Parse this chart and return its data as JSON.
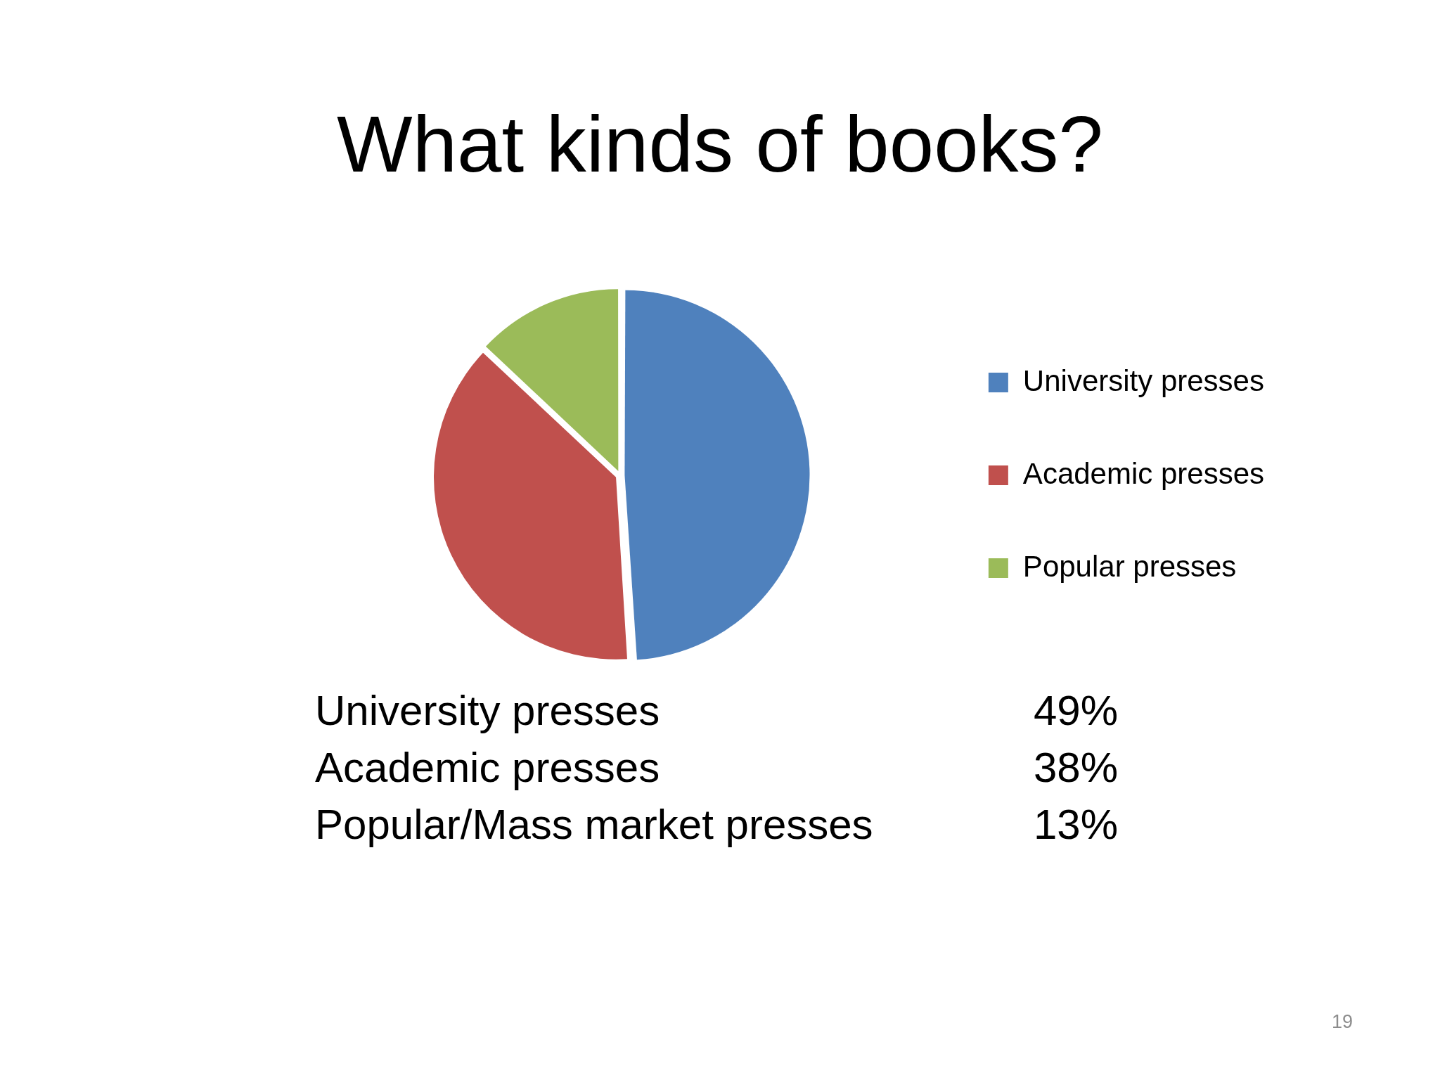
{
  "chart_data": {
    "type": "pie",
    "title": "What kinds of books?",
    "categories": [
      "University presses",
      "Academic presses",
      "Popular presses"
    ],
    "values": [
      49,
      38,
      13
    ],
    "colors": [
      "#4f81bd",
      "#c0504d",
      "#9bbb59"
    ],
    "legend": "right",
    "annotations": [
      "University presses",
      "49%",
      "Academic presses",
      "38%",
      "Popular/Mass market presses",
      "13%",
      "19"
    ]
  }
}
